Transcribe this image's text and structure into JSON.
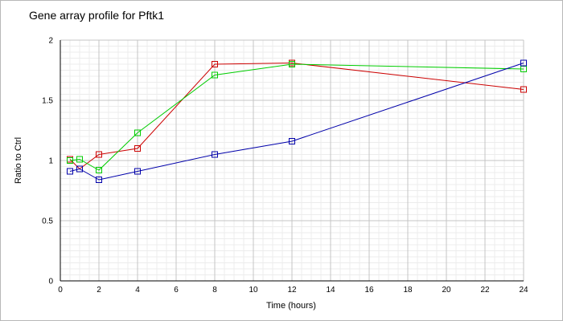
{
  "chart_data": {
    "type": "line",
    "title": "Gene array profile for Pftk1",
    "xlabel": "Time (hours)",
    "ylabel": "Ratio to Ctrl",
    "xlim": [
      0,
      24
    ],
    "ylim": [
      0,
      2
    ],
    "xticks": [
      0,
      2,
      4,
      6,
      8,
      10,
      12,
      14,
      16,
      18,
      20,
      22,
      24
    ],
    "yticks": [
      0,
      0.5,
      1,
      1.5,
      2
    ],
    "xtick_labels": [
      "0",
      "2",
      "4",
      "6",
      "8",
      "10",
      "12",
      "14",
      "16",
      "18",
      "20",
      "22",
      "24"
    ],
    "ytick_labels": [
      "0",
      "0.5",
      "1",
      "1.5",
      "2"
    ],
    "grid": true,
    "minor_grid": true,
    "marker": "square",
    "series": [
      {
        "color": "#cc0000",
        "x": [
          0.5,
          1,
          2,
          4,
          8,
          12,
          24
        ],
        "y": [
          1.01,
          0.93,
          1.05,
          1.1,
          1.8,
          1.81,
          1.59
        ]
      },
      {
        "color": "#00cc00",
        "x": [
          0.5,
          1,
          2,
          4,
          8,
          12,
          24
        ],
        "y": [
          1.0,
          1.01,
          0.92,
          1.23,
          1.71,
          1.8,
          1.76
        ]
      },
      {
        "color": "#0000aa",
        "x": [
          0.5,
          1,
          2,
          4,
          8,
          12,
          24
        ],
        "y": [
          0.91,
          0.93,
          0.84,
          0.91,
          1.05,
          1.16,
          1.81
        ]
      }
    ]
  }
}
